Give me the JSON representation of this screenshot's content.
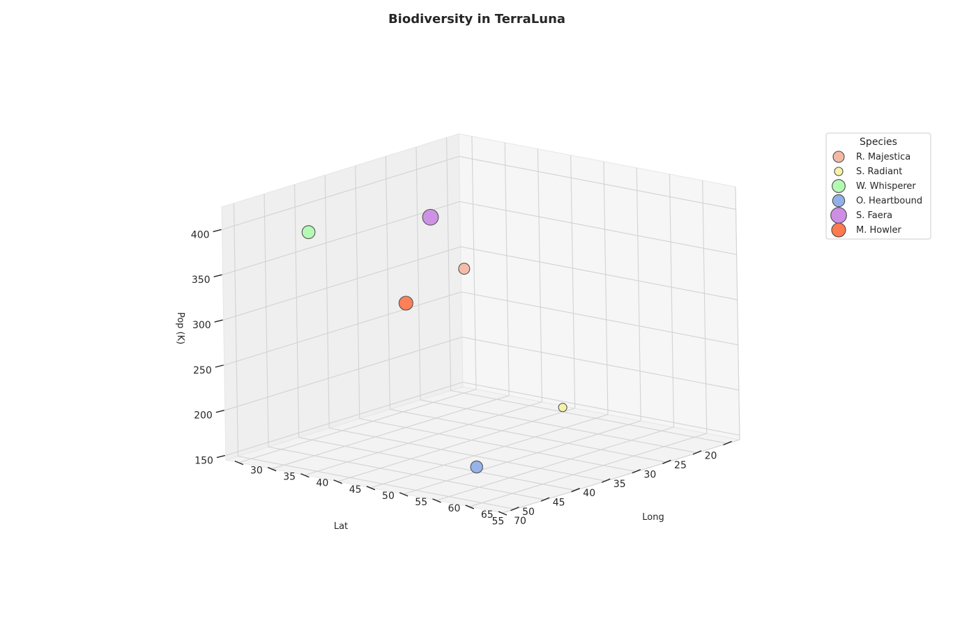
{
  "chart_data": {
    "type": "scatter3d",
    "title": "Biodiversity in TerraLuna",
    "xlabel": "Long",
    "ylabel": "Lat",
    "zlabel": "Pop (K)",
    "xlim": [
      28,
      70
    ],
    "ylim": [
      18,
      57
    ],
    "zlim": [
      145,
      425
    ],
    "x_ticks": [
      30,
      35,
      40,
      45,
      50,
      55,
      60,
      65,
      70
    ],
    "y_ticks": [
      20,
      25,
      30,
      35,
      40,
      45,
      50,
      55
    ],
    "z_ticks": [
      150,
      200,
      250,
      300,
      350,
      400
    ],
    "grid": true,
    "legend": {
      "title": "Species",
      "placement": "right"
    },
    "series": [
      {
        "name": "R. Majestica",
        "long": 35,
        "lat": 25,
        "pop": 300,
        "size": 12,
        "color": "#f4b9a5"
      },
      {
        "name": "S. Radiant",
        "long": 45,
        "lat": 20,
        "pop": 150,
        "size": 9,
        "color": "#f6f3a6"
      },
      {
        "name": "W. Whisperer",
        "long": 30,
        "lat": 45,
        "pop": 375,
        "size": 14,
        "color": "#b4f9b4"
      },
      {
        "name": "O. Heartbound",
        "long": 55,
        "lat": 45,
        "pop": 150,
        "size": 13,
        "color": "#92b1ea"
      },
      {
        "name": "S. Faera",
        "long": 30,
        "lat": 25,
        "pop": 350,
        "size": 17,
        "color": "#cd8ee4"
      },
      {
        "name": "M. Howler",
        "long": 40,
        "lat": 40,
        "pop": 300,
        "size": 15,
        "color": "#fe7b50"
      }
    ]
  }
}
